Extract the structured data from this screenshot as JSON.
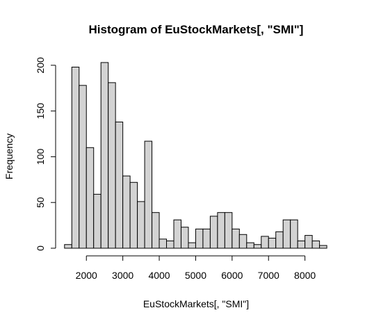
{
  "chart_data": {
    "type": "bar",
    "title": "Histogram of EuStockMarkets[, \"SMI\"]",
    "xlabel": "EuStockMarkets[, \"SMI\"]",
    "ylabel": "Frequency",
    "bin_width": 200,
    "bin_start": 1400,
    "values": [
      4,
      198,
      178,
      110,
      59,
      203,
      181,
      138,
      79,
      72,
      51,
      117,
      39,
      10,
      8,
      31,
      23,
      6,
      21,
      21,
      35,
      39,
      39,
      21,
      15,
      6,
      4,
      13,
      11,
      18,
      31,
      31,
      8,
      14,
      8,
      3
    ],
    "xlim": [
      1400,
      8600
    ],
    "ylim": [
      0,
      210
    ],
    "x_ticks": [
      2000,
      3000,
      4000,
      5000,
      6000,
      7000,
      8000
    ],
    "y_ticks": [
      0,
      50,
      100,
      150,
      200
    ],
    "bar_color": "#d3d3d3",
    "grid": false
  }
}
